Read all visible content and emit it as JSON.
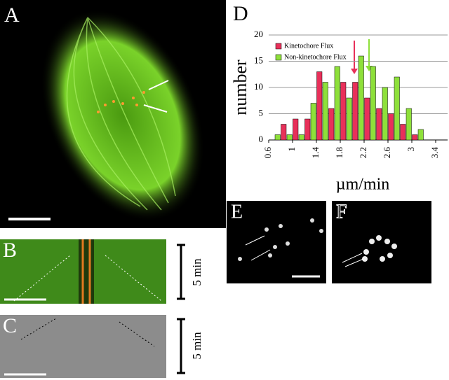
{
  "panels": {
    "a": "A",
    "b": "B",
    "c": "C",
    "d": "D",
    "e": "E",
    "f": "F"
  },
  "time_labels": [
    "5 min",
    "5 min"
  ],
  "chart_data": {
    "type": "histogram",
    "xlabel": "µm/min",
    "ylabel": "number",
    "bins": [
      0.6,
      0.8,
      1.0,
      1.2,
      1.4,
      1.6,
      1.8,
      2.0,
      2.2,
      2.4,
      2.6,
      2.8,
      3.0,
      3.2
    ],
    "series": [
      {
        "name": "Kinetochore Flux",
        "color": "#e8305a",
        "values": [
          0,
          3,
          4,
          4,
          13,
          6,
          11,
          11,
          8,
          6,
          5,
          3,
          1
        ]
      },
      {
        "name": "Non-kinetochore Flux",
        "color": "#8ee03a",
        "values": [
          1,
          1,
          1,
          7,
          11,
          14,
          8,
          16,
          14,
          10,
          12,
          6,
          2
        ]
      }
    ],
    "xlim": [
      0.6,
      3.6
    ],
    "xticks": [
      0.6,
      1,
      1.4,
      1.8,
      2.2,
      2.6,
      3,
      3.4
    ],
    "ylim": [
      0,
      20
    ],
    "yticks": [
      0,
      5,
      10,
      15,
      20
    ],
    "grid": true,
    "legend": "top-left"
  }
}
